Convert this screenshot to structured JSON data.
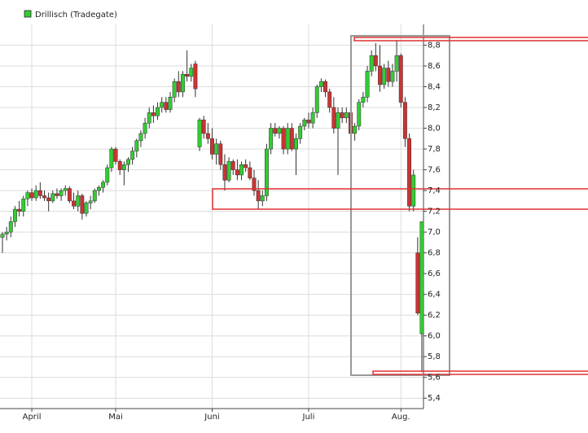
{
  "chart_data": {
    "type": "candlestick",
    "legend": "top-left",
    "grid": true,
    "ylim": [
      5.3,
      9.0
    ],
    "yticks": [
      {
        "value": 5.4,
        "label": "5,4"
      },
      {
        "value": 5.6,
        "label": "5,6"
      },
      {
        "value": 5.8,
        "label": "5,8"
      },
      {
        "value": 6.0,
        "label": "6,0"
      },
      {
        "value": 6.2,
        "label": "6,2"
      },
      {
        "value": 6.4,
        "label": "6,4"
      },
      {
        "value": 6.6,
        "label": "6,6"
      },
      {
        "value": 6.8,
        "label": "6,8"
      },
      {
        "value": 7.0,
        "label": "7,0"
      },
      {
        "value": 7.2,
        "label": "7,2"
      },
      {
        "value": 7.4,
        "label": "7,4"
      },
      {
        "value": 7.6,
        "label": "7,6"
      },
      {
        "value": 7.8,
        "label": "7,8"
      },
      {
        "value": 8.0,
        "label": "8,0"
      },
      {
        "value": 8.2,
        "label": "8,2"
      },
      {
        "value": 8.4,
        "label": "8,4"
      },
      {
        "value": 8.6,
        "label": "8,6"
      },
      {
        "value": 8.8,
        "label": "8,8"
      }
    ],
    "categories": [
      null,
      null,
      null,
      null,
      null,
      null,
      null,
      "April",
      null,
      null,
      null,
      null,
      null,
      null,
      null,
      null,
      null,
      null,
      null,
      null,
      null,
      null,
      null,
      null,
      null,
      null,
      null,
      "Mai",
      null,
      null,
      null,
      null,
      null,
      null,
      null,
      null,
      null,
      null,
      null,
      null,
      null,
      null,
      null,
      null,
      null,
      null,
      null,
      null,
      null,
      null,
      "Juni",
      null,
      null,
      null,
      null,
      null,
      null,
      null,
      null,
      null,
      null,
      null,
      null,
      null,
      null,
      null,
      null,
      null,
      null,
      null,
      null,
      null,
      null,
      "Juli",
      null,
      null,
      null,
      null,
      null,
      null,
      null,
      null,
      null,
      null,
      null,
      null,
      null,
      null,
      null,
      null,
      null,
      null,
      null,
      null,
      null,
      "Aug.",
      null,
      null,
      null,
      null,
      null
    ],
    "series": [
      {
        "name": "Drillisch (Tradegate)",
        "color": "#33cc33",
        "up_color": "#33cc33",
        "down_color": "#cc3333",
        "open": [
          6.95,
          6.98,
          7.0,
          7.1,
          7.22,
          7.2,
          7.32,
          7.38,
          7.33,
          7.4,
          7.35,
          7.33,
          7.3,
          7.37,
          7.35,
          7.4,
          7.42,
          7.3,
          7.25,
          7.35,
          7.18,
          7.28,
          7.3,
          7.4,
          7.43,
          7.48,
          7.62,
          7.8,
          7.68,
          7.6,
          7.65,
          7.7,
          7.78,
          7.88,
          7.95,
          8.05,
          8.15,
          8.12,
          8.2,
          8.25,
          8.18,
          8.3,
          8.45,
          8.35,
          8.52,
          8.5,
          8.62,
          7.82,
          8.08,
          7.95,
          7.9,
          7.75,
          7.85,
          7.65,
          7.5,
          7.68,
          7.6,
          7.55,
          7.65,
          7.62,
          7.52,
          7.4,
          7.3,
          7.35,
          7.8,
          8.0,
          7.95,
          8.0,
          7.8,
          8.0,
          7.8,
          7.9,
          8.02,
          8.08,
          8.05,
          8.15,
          8.4,
          8.45,
          8.35,
          8.2,
          8.0,
          8.15,
          8.1,
          8.15,
          7.95,
          8.02,
          8.25,
          8.3,
          8.55,
          8.7,
          8.6,
          8.42,
          8.58,
          8.45,
          8.55,
          8.7,
          8.25,
          7.9,
          7.25,
          6.8,
          6.02
        ],
        "high": [
          7.0,
          7.05,
          7.15,
          7.25,
          7.3,
          7.35,
          7.4,
          7.42,
          7.45,
          7.48,
          7.4,
          7.38,
          7.4,
          7.42,
          7.42,
          7.45,
          7.44,
          7.38,
          7.4,
          7.37,
          7.3,
          7.35,
          7.42,
          7.45,
          7.5,
          7.65,
          7.82,
          7.82,
          7.7,
          7.68,
          7.72,
          7.82,
          7.9,
          7.98,
          8.1,
          8.2,
          8.22,
          8.25,
          8.3,
          8.3,
          8.35,
          8.48,
          8.55,
          8.55,
          8.75,
          8.62,
          8.65,
          8.1,
          8.12,
          8.05,
          8.0,
          7.9,
          7.88,
          7.75,
          7.72,
          7.7,
          7.7,
          7.68,
          7.7,
          7.68,
          7.6,
          7.5,
          7.4,
          7.85,
          8.05,
          8.05,
          8.02,
          8.02,
          8.05,
          8.05,
          7.95,
          8.05,
          8.1,
          8.15,
          8.2,
          8.42,
          8.48,
          8.47,
          8.38,
          8.3,
          8.2,
          8.2,
          8.2,
          8.18,
          8.05,
          8.28,
          8.35,
          8.6,
          8.75,
          8.82,
          8.8,
          8.62,
          8.65,
          8.62,
          8.85,
          8.72,
          8.3,
          7.95,
          7.6,
          6.95,
          7.1
        ],
        "low": [
          6.8,
          6.92,
          6.95,
          7.05,
          7.15,
          7.15,
          7.25,
          7.3,
          7.3,
          7.32,
          7.3,
          7.2,
          7.28,
          7.32,
          7.3,
          7.35,
          7.28,
          7.22,
          7.2,
          7.12,
          7.15,
          7.22,
          7.28,
          7.35,
          7.38,
          7.45,
          7.58,
          7.65,
          7.55,
          7.45,
          7.58,
          7.65,
          7.72,
          7.82,
          7.9,
          8.0,
          8.05,
          8.08,
          8.15,
          8.15,
          8.15,
          8.25,
          8.3,
          8.3,
          8.45,
          8.45,
          8.3,
          7.78,
          7.9,
          7.85,
          7.7,
          7.65,
          7.6,
          7.4,
          7.48,
          7.55,
          7.5,
          7.5,
          7.58,
          7.5,
          7.35,
          7.22,
          7.25,
          7.3,
          7.75,
          7.92,
          7.9,
          7.75,
          7.75,
          7.78,
          7.55,
          7.85,
          7.98,
          8.0,
          8.0,
          8.1,
          8.35,
          8.3,
          8.15,
          7.95,
          7.55,
          8.05,
          8.05,
          7.9,
          7.88,
          7.98,
          8.2,
          8.25,
          8.5,
          8.55,
          8.35,
          8.38,
          8.4,
          8.4,
          8.45,
          8.2,
          7.82,
          7.2,
          7.2,
          6.2,
          5.65
        ],
        "close": [
          6.98,
          7.0,
          7.1,
          7.22,
          7.2,
          7.32,
          7.38,
          7.33,
          7.4,
          7.35,
          7.33,
          7.3,
          7.37,
          7.35,
          7.4,
          7.42,
          7.3,
          7.25,
          7.35,
          7.18,
          7.28,
          7.3,
          7.4,
          7.43,
          7.48,
          7.62,
          7.8,
          7.68,
          7.6,
          7.65,
          7.7,
          7.78,
          7.88,
          7.95,
          8.05,
          8.15,
          8.12,
          8.2,
          8.25,
          8.18,
          8.3,
          8.45,
          8.35,
          8.52,
          8.5,
          8.58,
          8.38,
          8.08,
          7.95,
          7.9,
          7.75,
          7.85,
          7.65,
          7.5,
          7.68,
          7.6,
          7.55,
          7.65,
          7.62,
          7.52,
          7.4,
          7.3,
          7.35,
          7.8,
          8.0,
          7.95,
          8.0,
          7.8,
          8.0,
          7.8,
          7.9,
          8.02,
          8.08,
          8.05,
          8.15,
          8.4,
          8.45,
          8.35,
          8.2,
          8.0,
          8.15,
          8.1,
          8.15,
          7.95,
          8.02,
          8.25,
          8.3,
          8.55,
          8.7,
          8.6,
          8.42,
          8.58,
          8.45,
          8.55,
          8.7,
          8.25,
          7.9,
          7.25,
          7.55,
          6.22,
          7.1
        ]
      }
    ]
  }
}
